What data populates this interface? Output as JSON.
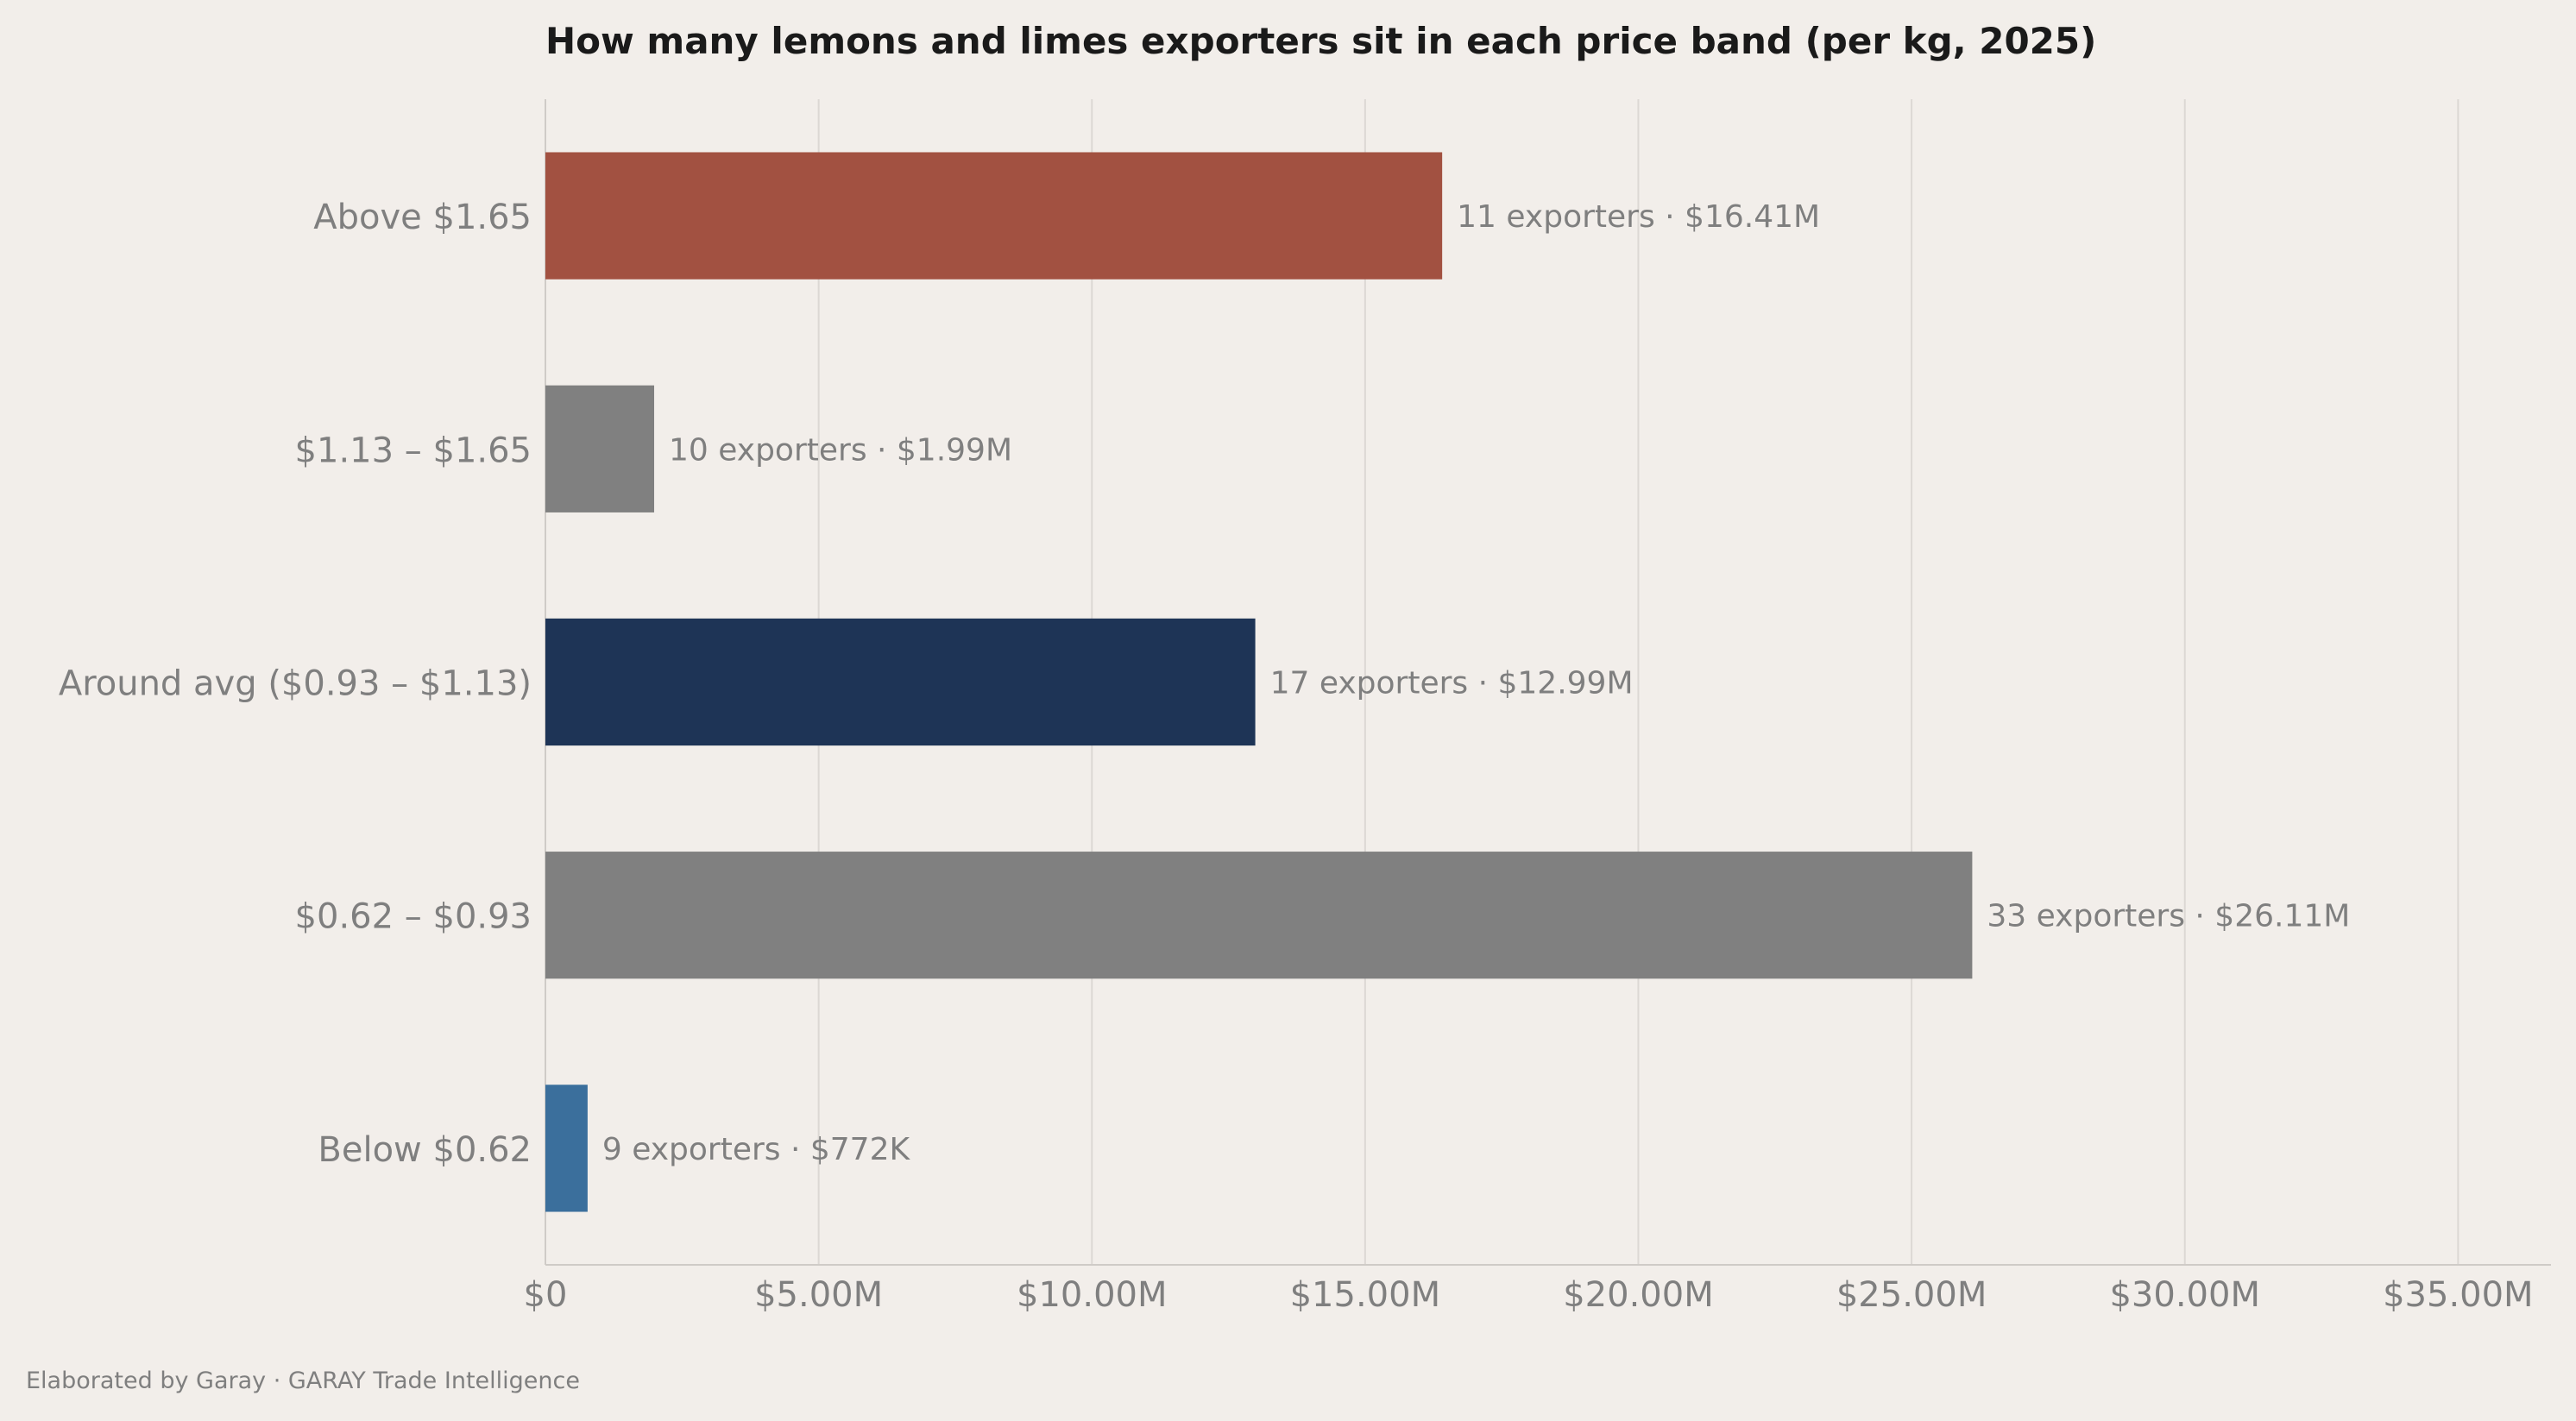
{
  "chart_data": {
    "type": "bar",
    "orientation": "horizontal",
    "title": "How many lemons and limes exporters sit in each price band (per kg, 2025)",
    "xlabel": "",
    "ylabel": "",
    "xlim": [
      0,
      36.7
    ],
    "grid": "vertical",
    "categories": [
      "Above $1.65",
      "$1.13 – $1.65",
      "Around avg ($0.93 – $1.13)",
      "$0.62 – $0.93",
      "Below $0.62"
    ],
    "values": [
      16.41,
      1.99,
      12.99,
      26.11,
      0.772
    ],
    "exporters": [
      11,
      10,
      17,
      33,
      9
    ],
    "data_labels": [
      "11 exporters  ·  $16.41M",
      "10 exporters  ·  $1.99M",
      "17 exporters  ·  $12.99M",
      "33 exporters  ·  $26.11M",
      "9 exporters  ·  $772K"
    ],
    "colors": [
      "#a25141",
      "#808080",
      "#1e3456",
      "#808080",
      "#3b6f9c"
    ],
    "ticks": [
      0,
      5,
      10,
      15,
      20,
      25,
      30,
      35
    ],
    "tick_labels": [
      "$0",
      "$5.00M",
      "$10.00M",
      "$15.00M",
      "$20.00M",
      "$25.00M",
      "$30.00M",
      "$35.00M"
    ]
  },
  "footer": "Elaborated by Garay  ·  GARAY Trade Intelligence"
}
